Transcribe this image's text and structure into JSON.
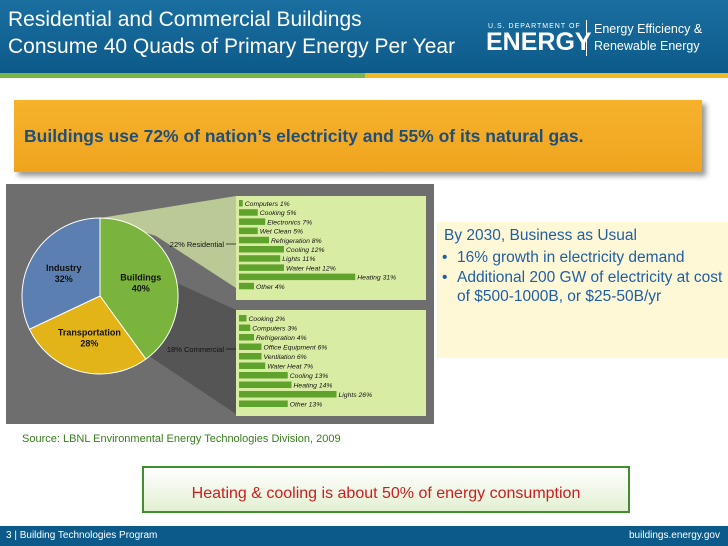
{
  "header": {
    "title_line1": "Residential and Commercial Buildings",
    "title_line2": "Consume 40 Quads of Primary Energy Per Year",
    "doe_small": "U.S. DEPARTMENT OF",
    "doe_big": "ENERGY",
    "eere_line1": "Energy Efficiency &",
    "eere_line2": "Renewable Energy"
  },
  "banner": {
    "text": "Buildings use 72% of nation’s electricity and 55% of its natural gas."
  },
  "chart_data": {
    "type": "pie",
    "slices": [
      {
        "label": "Buildings",
        "value": 40,
        "value_label": "40%",
        "color": "#7ab43c"
      },
      {
        "label": "Transportation",
        "value": 28,
        "value_label": "28%",
        "color": "#e2b418"
      },
      {
        "label": "Industry",
        "value": 32,
        "value_label": "32%",
        "color": "#5c7fb1"
      }
    ],
    "breakdowns": [
      {
        "label": "22% Residential",
        "items": [
          {
            "name": "Computers",
            "value": 1,
            "label": "Computers 1%"
          },
          {
            "name": "Cooking",
            "value": 5,
            "label": "Cooking 5%"
          },
          {
            "name": "Electronics",
            "value": 7,
            "label": "Electronics 7%"
          },
          {
            "name": "Wet Clean",
            "value": 5,
            "label": "Wet Clean 5%"
          },
          {
            "name": "Refrigeration",
            "value": 8,
            "label": "Refrigeration 8%"
          },
          {
            "name": "Cooling",
            "value": 12,
            "label": "Cooling 12%"
          },
          {
            "name": "Lights",
            "value": 11,
            "label": "Lights 11%"
          },
          {
            "name": "Water Heat",
            "value": 12,
            "label": "Water Heat 12%"
          },
          {
            "name": "Heating",
            "value": 31,
            "label": "Heating 31%"
          },
          {
            "name": "Other",
            "value": 4,
            "label": "Other 4%"
          }
        ]
      },
      {
        "label": "18% Commercial",
        "items": [
          {
            "name": "Cooking",
            "value": 2,
            "label": "Cooking 2%"
          },
          {
            "name": "Computers",
            "value": 3,
            "label": "Computers 3%"
          },
          {
            "name": "Refrigeration",
            "value": 4,
            "label": "Refrigeration 4%"
          },
          {
            "name": "Office Equipment",
            "value": 6,
            "label": "Office Equipment 6%"
          },
          {
            "name": "Ventilation",
            "value": 6,
            "label": "Ventilation 6%"
          },
          {
            "name": "Water Heat",
            "value": 7,
            "label": "Water Heat 7%"
          },
          {
            "name": "Cooling",
            "value": 13,
            "label": "Cooling 13%"
          },
          {
            "name": "Heating",
            "value": 14,
            "label": "Heating 14%"
          },
          {
            "name": "Lights",
            "value": 26,
            "label": "Lights 26%"
          },
          {
            "name": "Other",
            "value": 13,
            "label": "Other 13%"
          }
        ]
      }
    ]
  },
  "info": {
    "title": "By 2030, Business as Usual",
    "bullet": "•",
    "items": [
      "16% growth in electricity demand",
      "Additional 200 GW of electricity at cost of $500-1000B, or $25-50B/yr"
    ]
  },
  "source": "Source: LBNL Environmental Energy Technologies Division, 2009",
  "callout": "Heating & cooling is about 50% of energy consumption",
  "footer": {
    "left": "3 | Building Technologies Program",
    "right": "buildings.energy.gov"
  }
}
